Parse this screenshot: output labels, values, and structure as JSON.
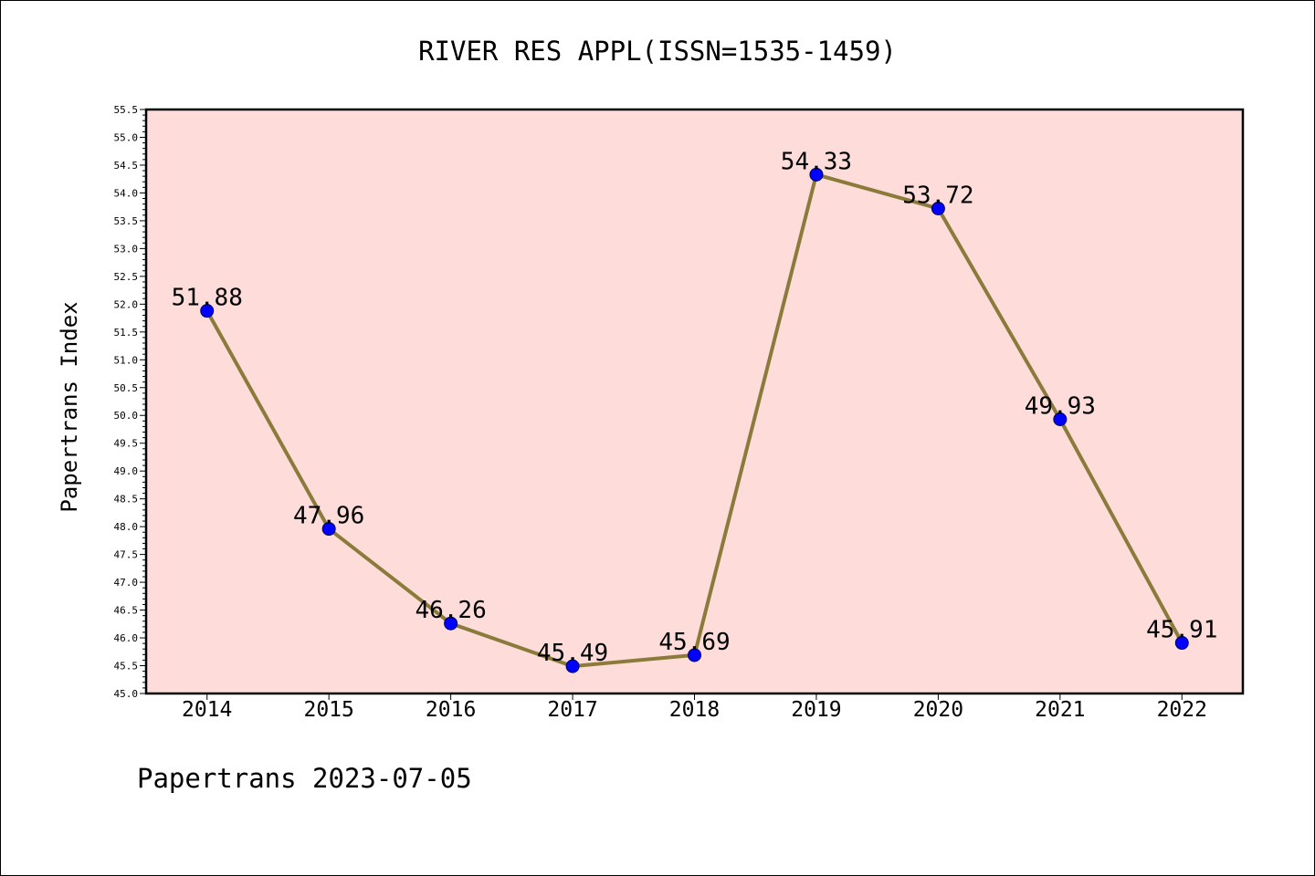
{
  "chart_data": {
    "type": "line",
    "title": "RIVER RES APPL(ISSN=1535-1459)",
    "xlabel": "",
    "ylabel": "Papertrans Index",
    "categories": [
      "2014",
      "2015",
      "2016",
      "2017",
      "2018",
      "2019",
      "2020",
      "2021",
      "2022"
    ],
    "series": [
      {
        "values": [
          51.88,
          47.96,
          46.26,
          45.49,
          45.69,
          54.33,
          53.72,
          49.93,
          45.91
        ]
      }
    ],
    "ylim": [
      45.0,
      55.5
    ],
    "ytick_step": 0.5,
    "yminor_step": 0.1,
    "grid": false,
    "legend": "none",
    "data_labels": true,
    "colors": {
      "line": "#8b7b3b",
      "marker": "#0000ff",
      "marker_edge": "#00005a",
      "plot_background": "#fddcda",
      "frame": "#000000"
    }
  },
  "footer_text": "Papertrans 2023-07-05"
}
